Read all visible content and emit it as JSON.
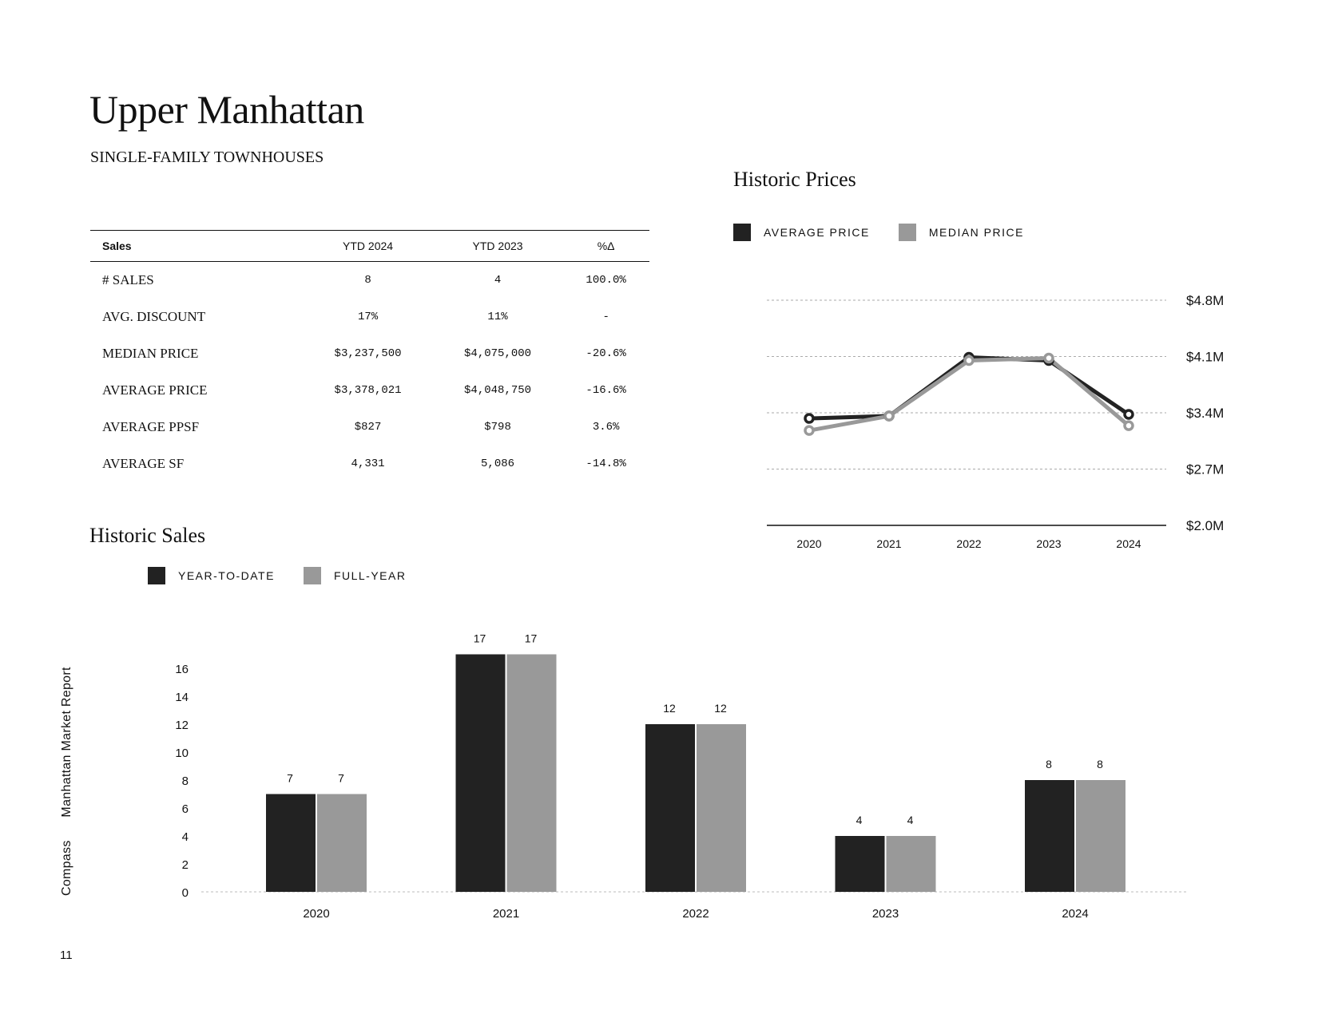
{
  "title": "Upper Manhattan",
  "subtitle": "SINGLE-FAMILY TOWNHOUSES",
  "table": {
    "headers": [
      "Sales",
      "YTD 2024",
      "YTD 2023",
      "%Δ"
    ],
    "rows": [
      {
        "label": "# SALES",
        "ytd2024": "8",
        "ytd2023": "4",
        "change": "100.0%"
      },
      {
        "label": "AVG. DISCOUNT",
        "ytd2024": "17%",
        "ytd2023": "11%",
        "change": "-"
      },
      {
        "label": "MEDIAN PRICE",
        "ytd2024": "$3,237,500",
        "ytd2023": "$4,075,000",
        "change": "-20.6%"
      },
      {
        "label": "AVERAGE PRICE",
        "ytd2024": "$3,378,021",
        "ytd2023": "$4,048,750",
        "change": "-16.6%"
      },
      {
        "label": "AVERAGE PPSF",
        "ytd2024": "$827",
        "ytd2023": "$798",
        "change": "3.6%"
      },
      {
        "label": "AVERAGE SF",
        "ytd2024": "4,331",
        "ytd2023": "5,086",
        "change": "-14.8%"
      }
    ]
  },
  "prices_section": {
    "title": "Historic Prices",
    "legend": [
      {
        "label": "AVERAGE PRICE",
        "color": "#222222"
      },
      {
        "label": "MEDIAN PRICE",
        "color": "#999999"
      }
    ]
  },
  "sales_section": {
    "title": "Historic Sales",
    "legend": [
      {
        "label": "YEAR-TO-DATE",
        "color": "#222222"
      },
      {
        "label": "FULL-YEAR",
        "color": "#999999"
      }
    ]
  },
  "footer": {
    "brand": "Compass",
    "report": "Manhattan Market Report",
    "page": "11"
  },
  "chart_data": [
    {
      "type": "line",
      "title": "Historic Prices",
      "x": [
        "2020",
        "2021",
        "2022",
        "2023",
        "2024"
      ],
      "ylim": [
        2.0,
        4.8
      ],
      "y_ticks": [
        2.0,
        2.7,
        3.4,
        4.1,
        4.8
      ],
      "y_tick_labels": [
        "$2.0M",
        "$2.7M",
        "$3.4M",
        "$4.1M",
        "$4.8M"
      ],
      "y_axis_side": "right",
      "grid": true,
      "series": [
        {
          "name": "AVERAGE PRICE",
          "color": "#222222",
          "values": [
            3.33,
            3.36,
            4.09,
            4.05,
            3.38
          ]
        },
        {
          "name": "MEDIAN PRICE",
          "color": "#999999",
          "values": [
            3.18,
            3.36,
            4.05,
            4.08,
            3.24
          ]
        }
      ]
    },
    {
      "type": "bar",
      "title": "Historic Sales",
      "categories": [
        "2020",
        "2021",
        "2022",
        "2023",
        "2024"
      ],
      "ylim": [
        0,
        17
      ],
      "y_ticks": [
        0,
        2,
        4,
        6,
        8,
        10,
        12,
        14,
        16
      ],
      "series": [
        {
          "name": "YEAR-TO-DATE",
          "color": "#222222",
          "values": [
            7,
            17,
            12,
            4,
            8
          ]
        },
        {
          "name": "FULL-YEAR",
          "color": "#999999",
          "values": [
            7,
            17,
            12,
            4,
            8
          ]
        }
      ]
    }
  ]
}
